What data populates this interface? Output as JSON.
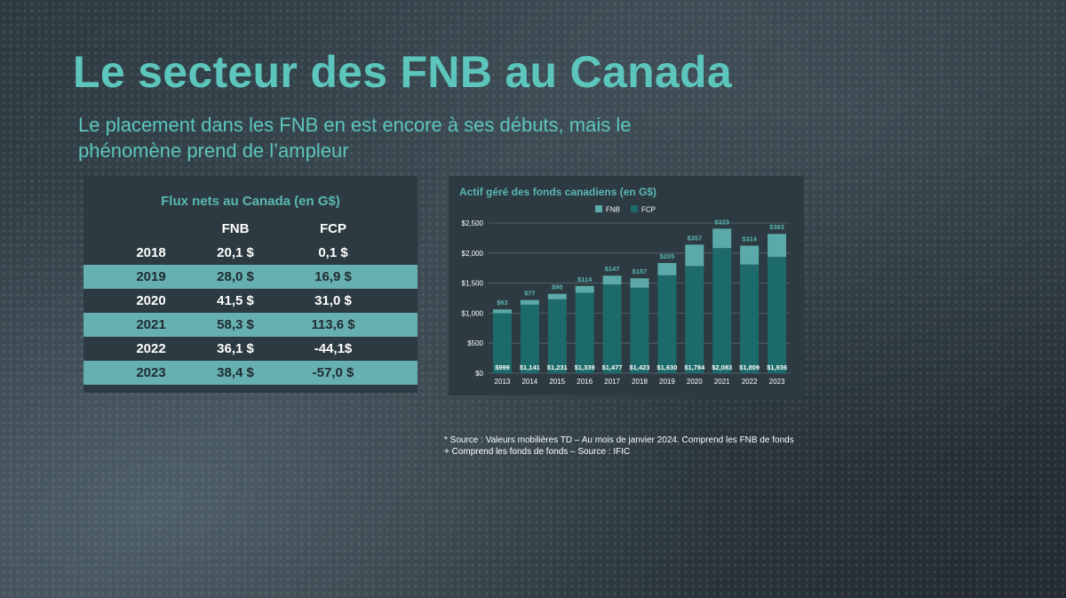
{
  "slide": {
    "title": "Le secteur des FNB au Canada",
    "subtitle": "Le placement dans les FNB en est encore à ses débuts, mais le phénomène prend de l’ampleur"
  },
  "table": {
    "title": "Flux nets au Canada (en G$)",
    "headers": [
      "",
      "FNB",
      "FCP"
    ],
    "rows": [
      {
        "year": "2018",
        "fnb": "20,1 $",
        "fcp": "0,1 $"
      },
      {
        "year": "2019",
        "fnb": "28,0 $",
        "fcp": "16,9 $"
      },
      {
        "year": "2020",
        "fnb": "41,5 $",
        "fcp": "31,0 $"
      },
      {
        "year": "2021",
        "fnb": "58,3 $",
        "fcp": "113,6 $"
      },
      {
        "year": "2022",
        "fnb": "36,1 $",
        "fcp": "-44,1$"
      },
      {
        "year": "2023",
        "fnb": "38,4 $",
        "fcp": "-57,0 $"
      }
    ]
  },
  "chart_data": {
    "type": "bar",
    "stacked": true,
    "title": "Actif géré des fonds canadiens (en G$)",
    "categories": [
      "2013",
      "2014",
      "2015",
      "2016",
      "2017",
      "2018",
      "2019",
      "2020",
      "2021",
      "2022",
      "2023"
    ],
    "series": [
      {
        "name": "FCP",
        "color": "#1d6a6b",
        "values": [
          999,
          1141,
          1231,
          1339,
          1477,
          1423,
          1630,
          1784,
          2083,
          1809,
          1936
        ],
        "labels": [
          "$999",
          "$1,141",
          "$1,231",
          "$1,339",
          "$1,477",
          "$1,423",
          "$1,630",
          "$1,784",
          "$2,083",
          "$1,809",
          "$1,936"
        ]
      },
      {
        "name": "FNB",
        "color": "#5ba9a8",
        "values": [
          63,
          77,
          90,
          114,
          147,
          157,
          205,
          357,
          323,
          314,
          383
        ],
        "labels": [
          "$63",
          "$77",
          "$90",
          "$114",
          "$147",
          "$157",
          "$205",
          "$357",
          "$323",
          "$314",
          "$383"
        ]
      }
    ],
    "legend_order": [
      "FNB",
      "FCP"
    ],
    "yticks": [
      "$0",
      "$500",
      "$1,000",
      "$1,500",
      "$2,000",
      "$2,500"
    ],
    "ytick_values": [
      0,
      500,
      1000,
      1500,
      2000,
      2500
    ],
    "ylim": [
      0,
      2500
    ],
    "grid": true,
    "legend_position": "top-center"
  },
  "footnote": {
    "line1": "* Source : Valeurs mobilières TD – Au mois de janvier 2024. Comprend les FNB de fonds",
    "line2": "+ Comprend les fonds de fonds – Source : IFIC"
  }
}
